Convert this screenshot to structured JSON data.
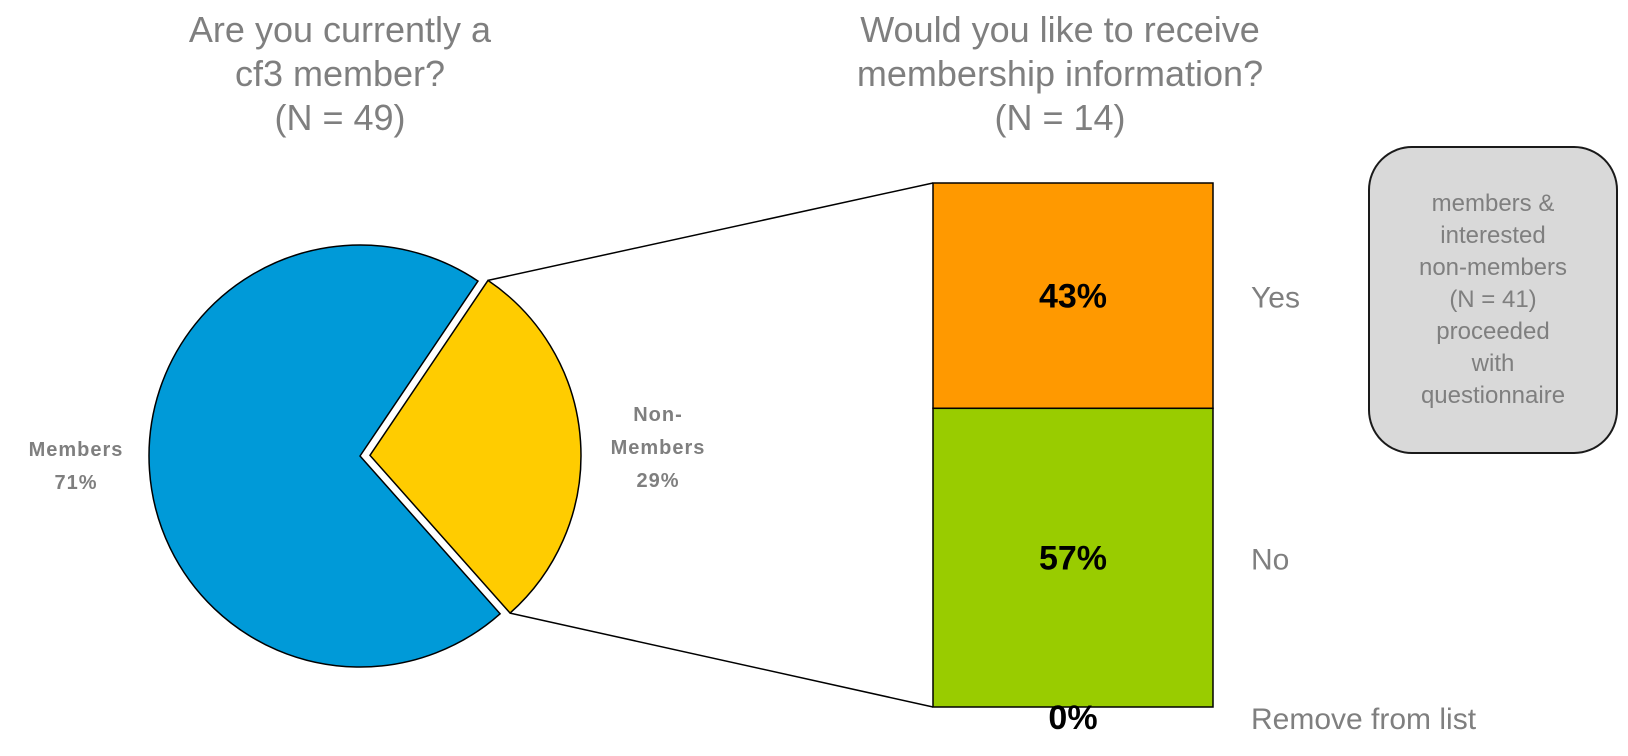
{
  "chart_data": [
    {
      "type": "pie",
      "title_lines": [
        "Are you currently a",
        "cf3 member?",
        "(N = 49)"
      ],
      "slices": [
        {
          "label_lines": [
            "Members",
            "71%"
          ],
          "value": 71,
          "color": "#009ad8"
        },
        {
          "label_lines": [
            "Non-",
            "Members",
            "29%"
          ],
          "value": 29,
          "color": "#ffcc00",
          "exploded": true
        }
      ],
      "label_color": "#7f7f7f"
    },
    {
      "type": "bar",
      "subtype": "100% stacked",
      "title_lines": [
        "Would you like to receive",
        "membership information?",
        "(N = 14)"
      ],
      "segments": [
        {
          "category": "Yes",
          "value": 43,
          "label": "43%",
          "color": "#ff9900"
        },
        {
          "category": "No",
          "value": 57,
          "label": "57%",
          "color": "#99cc00"
        },
        {
          "category": "Remove from list",
          "value": 0,
          "label": "0%",
          "color": "#99cc00"
        }
      ],
      "category_label_color": "#7f7f7f"
    }
  ],
  "callout": {
    "lines": [
      "members &",
      "interested",
      "non-members",
      "(N = 41)",
      "proceeded",
      "with",
      "questionnaire"
    ],
    "fill": "#d9d9d9"
  }
}
